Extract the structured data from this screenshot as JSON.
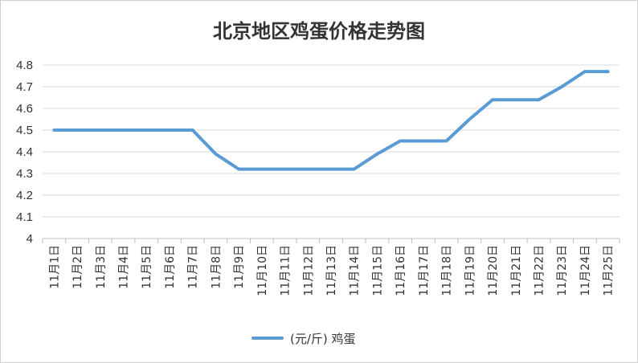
{
  "chart_data": {
    "type": "line",
    "title": "北京地区鸡蛋价格走势图",
    "categories": [
      "11月1日",
      "11月2日",
      "11月3日",
      "11月4日",
      "11月5日",
      "11月6日",
      "11月7日",
      "11月8日",
      "11月9日",
      "11月10日",
      "11月11日",
      "11月12日",
      "11月13日",
      "11月14日",
      "11月15日",
      "11月16日",
      "11月17日",
      "11月18日",
      "11月19日",
      "11月20日",
      "11月21日",
      "11月22日",
      "11月23日",
      "11月24日",
      "11月25日"
    ],
    "series": [
      {
        "name": "(元/斤) 鸡蛋",
        "color": "#5b9bd5",
        "values": [
          4.5,
          4.5,
          4.5,
          4.5,
          4.5,
          4.5,
          4.5,
          4.39,
          4.32,
          4.32,
          4.32,
          4.32,
          4.32,
          4.32,
          4.39,
          4.45,
          4.45,
          4.45,
          4.55,
          4.64,
          4.64,
          4.64,
          4.7,
          4.77,
          4.77
        ]
      }
    ],
    "yticks": [
      "4",
      "4.1",
      "4.2",
      "4.3",
      "4.4",
      "4.5",
      "4.6",
      "4.7",
      "4.8"
    ],
    "ylim": [
      4,
      4.8
    ],
    "grid": true,
    "legend_position": "bottom"
  }
}
